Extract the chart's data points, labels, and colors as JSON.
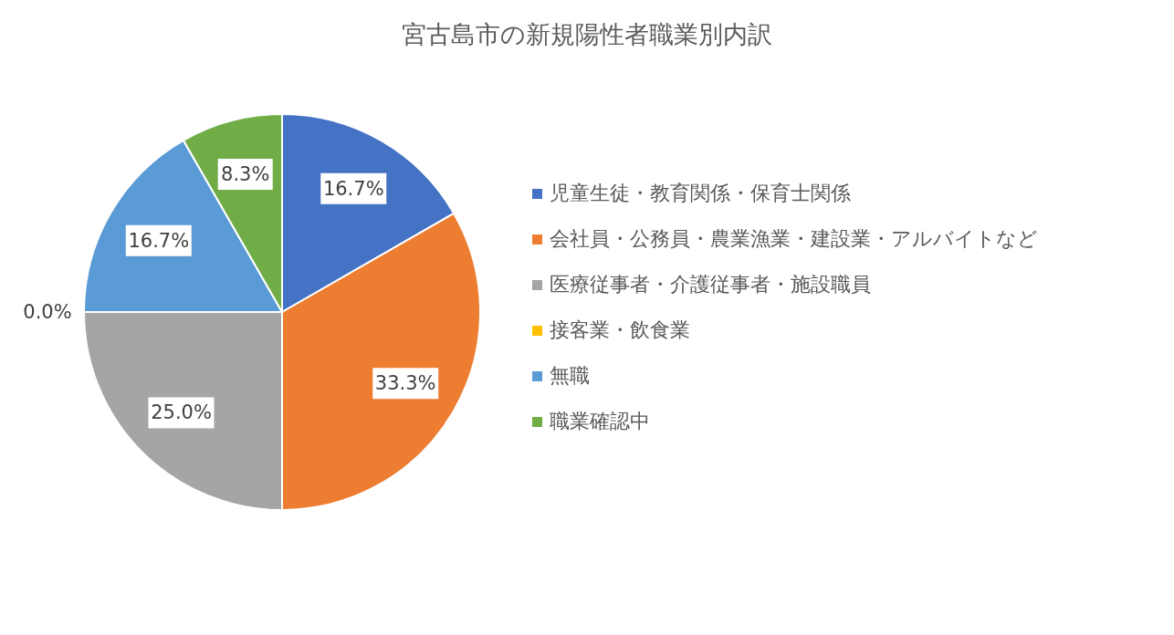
{
  "chart_data": {
    "type": "pie",
    "title": "宮古島市の新規陽性者職業別内訳",
    "categories": [
      "児童生徒・教育関係・保育士関係",
      "会社員・公務員・農業漁業・建設業・アルバイトなど",
      "医療従事者・介護従事者・施設職員",
      "接客業・飲食業",
      "無職",
      "職業確認中"
    ],
    "values": [
      16.7,
      33.3,
      25.0,
      0.0,
      16.7,
      8.3
    ],
    "value_labels": [
      "16.7%",
      "33.3%",
      "25.0%",
      "0.0%",
      "16.7%",
      "8.3%"
    ],
    "colors": [
      "#4472c4",
      "#ed7d31",
      "#a5a5a5",
      "#ffc000",
      "#5b9bd5",
      "#70ad47"
    ],
    "legend": "right"
  }
}
